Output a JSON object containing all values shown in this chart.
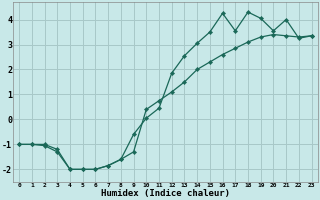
{
  "xlabel": "Humidex (Indice chaleur)",
  "bg_color": "#c8e8e8",
  "grid_color": "#a8c8c8",
  "line_color": "#1a6858",
  "xlim": [
    -0.5,
    23.5
  ],
  "ylim": [
    -2.5,
    4.7
  ],
  "yticks": [
    -2,
    -1,
    0,
    1,
    2,
    3,
    4
  ],
  "xticks": [
    0,
    1,
    2,
    3,
    4,
    5,
    6,
    7,
    8,
    9,
    10,
    11,
    12,
    13,
    14,
    15,
    16,
    17,
    18,
    19,
    20,
    21,
    22,
    23
  ],
  "line1_x": [
    0,
    1,
    2,
    3,
    4,
    5,
    6,
    7,
    8,
    9,
    10,
    11,
    12,
    13,
    14,
    15,
    16,
    17,
    18,
    19,
    20,
    21,
    22,
    23
  ],
  "line1_y": [
    -1.0,
    -1.0,
    -1.0,
    -1.2,
    -2.0,
    -2.0,
    -2.0,
    -1.85,
    -1.6,
    -0.6,
    0.05,
    0.45,
    1.85,
    2.55,
    3.05,
    3.5,
    4.25,
    3.55,
    4.3,
    4.05,
    3.55,
    4.0,
    3.25,
    3.35
  ],
  "line2_x": [
    0,
    1,
    2,
    3,
    4,
    5,
    6,
    7,
    8,
    9,
    10,
    11,
    12,
    13,
    14,
    15,
    16,
    17,
    18,
    19,
    20,
    21,
    22,
    23
  ],
  "line2_y": [
    -1.0,
    -1.0,
    -1.05,
    -1.3,
    -2.0,
    -2.0,
    -2.0,
    -1.85,
    -1.6,
    -1.3,
    0.4,
    0.75,
    1.1,
    1.5,
    2.0,
    2.3,
    2.6,
    2.85,
    3.1,
    3.3,
    3.4,
    3.35,
    3.3,
    3.35
  ]
}
